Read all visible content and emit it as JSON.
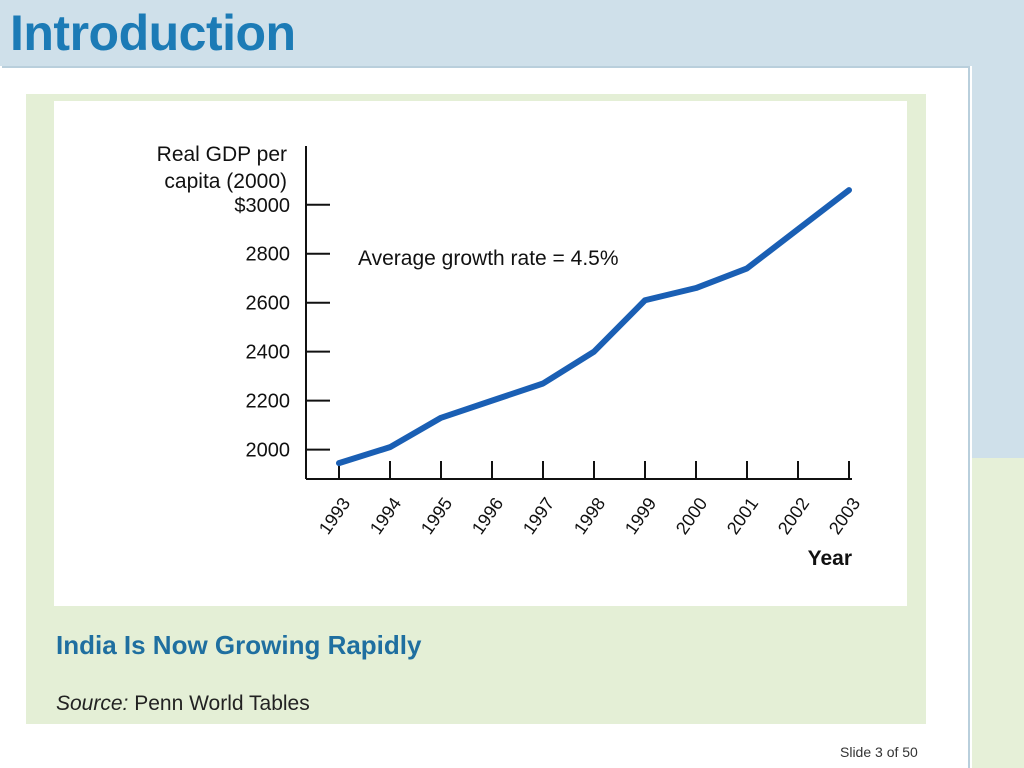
{
  "slide": {
    "title": "Introduction",
    "number_label": "Slide 3 of 50"
  },
  "figure": {
    "caption": "India Is Now Growing Rapidly",
    "source_label": "Source:",
    "source_value": "Penn World Tables"
  },
  "chart_data": {
    "type": "line",
    "ylabel_lines": [
      "Real GDP per",
      "capita (2000)"
    ],
    "xlabel": "Year",
    "annotation": "Average growth rate = 4.5%",
    "x": [
      "1993",
      "1994",
      "1995",
      "1996",
      "1997",
      "1998",
      "1999",
      "2000",
      "2001",
      "2002",
      "2003"
    ],
    "y": [
      1945,
      2010,
      2130,
      2200,
      2270,
      2400,
      2610,
      2660,
      2740,
      2900,
      3060
    ],
    "yticks": [
      2000,
      2200,
      2400,
      2600,
      2800,
      3000
    ],
    "ytick_labels": [
      "2000",
      "2200",
      "2400",
      "2600",
      "2800",
      "$3000"
    ],
    "ylim": [
      1880,
      3240
    ],
    "line_color": "#1a5fb4",
    "grid": false
  },
  "colors": {
    "title": "#1c7bb6",
    "caption": "#1f6fa0",
    "band": "#cfe0ea",
    "panel": "#e4efd6"
  }
}
